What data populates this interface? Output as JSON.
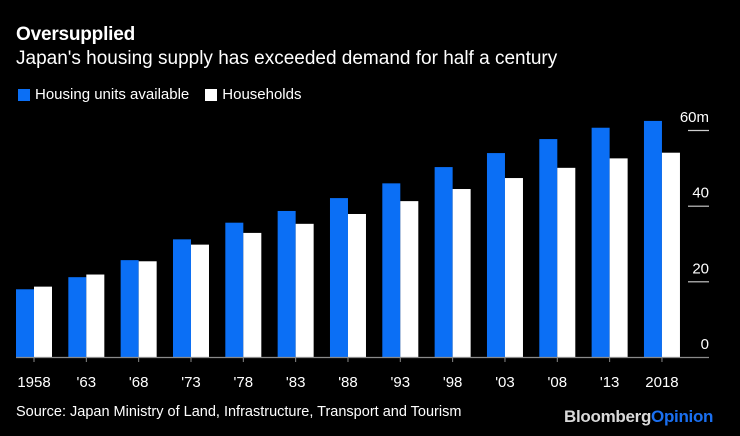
{
  "header": {
    "title": "Oversupplied",
    "subtitle": "Japan's housing supply has exceeded demand for half a century"
  },
  "legend": [
    {
      "label": "Housing units available",
      "color": "#0b6ff5"
    },
    {
      "label": "Households",
      "color": "#ffffff"
    }
  ],
  "footer": {
    "source": "Source: Japan Ministry of Land, Infrastructure, Transport and Tourism",
    "logo_primary": "Bloomberg",
    "logo_secondary": "Opinion"
  },
  "chart_data": {
    "type": "bar",
    "title": "Oversupplied",
    "subtitle": "Japan's housing supply has exceeded demand for half a century",
    "xlabel": "",
    "ylabel": "",
    "categories": [
      "1958",
      "'63",
      "'68",
      "'73",
      "'78",
      "'83",
      "'88",
      "'93",
      "'98",
      "'03",
      "'08",
      "'13",
      "2018"
    ],
    "series": [
      {
        "name": "Housing units available",
        "color": "#0b6ff5",
        "values": [
          17.9,
          21.1,
          25.6,
          31.1,
          35.5,
          38.6,
          42.0,
          45.9,
          50.2,
          53.9,
          57.6,
          60.6,
          62.4
        ]
      },
      {
        "name": "Households",
        "color": "#ffffff",
        "values": [
          18.6,
          21.8,
          25.3,
          29.7,
          32.8,
          35.2,
          37.8,
          41.2,
          44.4,
          47.3,
          50.0,
          52.5,
          54.0
        ]
      }
    ],
    "ylim": [
      0,
      60
    ],
    "yticks": [
      0,
      20,
      40,
      60
    ],
    "ytick_labels": [
      "0",
      "20",
      "40",
      "60m"
    ],
    "y_axis_position": "right",
    "legend_position": "top-left",
    "grid": false
  }
}
